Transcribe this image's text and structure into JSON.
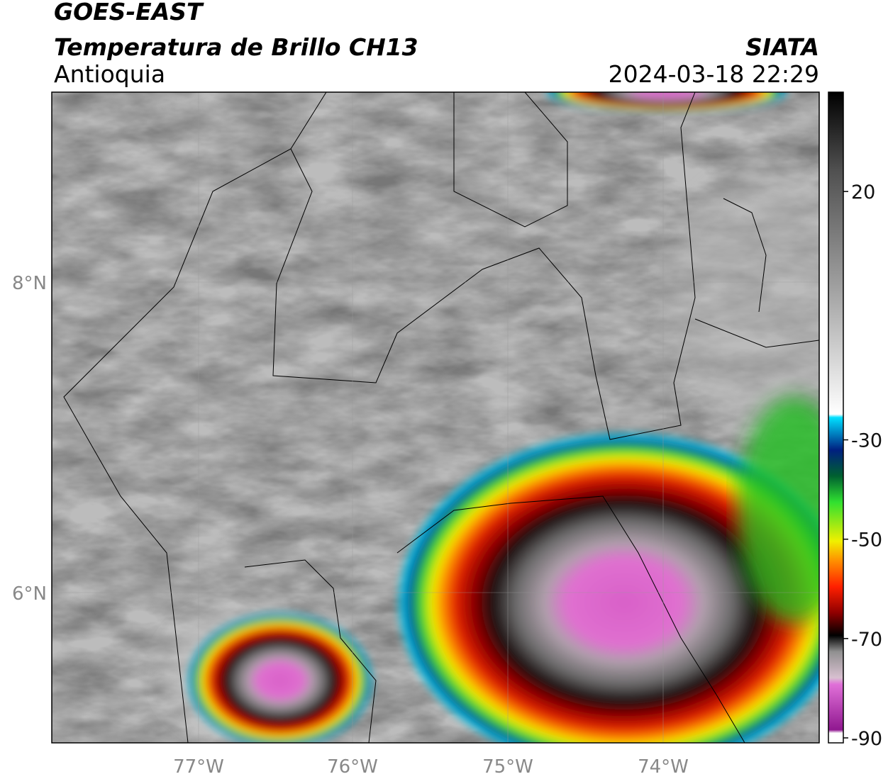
{
  "header": {
    "title": "GOES-EAST",
    "subtitle": "Temperatura de Brillo CH13",
    "region": "Antioquia",
    "source": "SIATA",
    "timestamp": "2024-03-18 22:29"
  },
  "map": {
    "lon_ticks": [
      "77°W",
      "76°W",
      "75°W",
      "74°W"
    ],
    "lat_ticks": [
      "8°N",
      "6°N"
    ]
  },
  "colorbar": {
    "ylim": [
      -91,
      40
    ],
    "yticks": [
      20,
      -30,
      -50,
      -70,
      -90
    ]
  }
}
